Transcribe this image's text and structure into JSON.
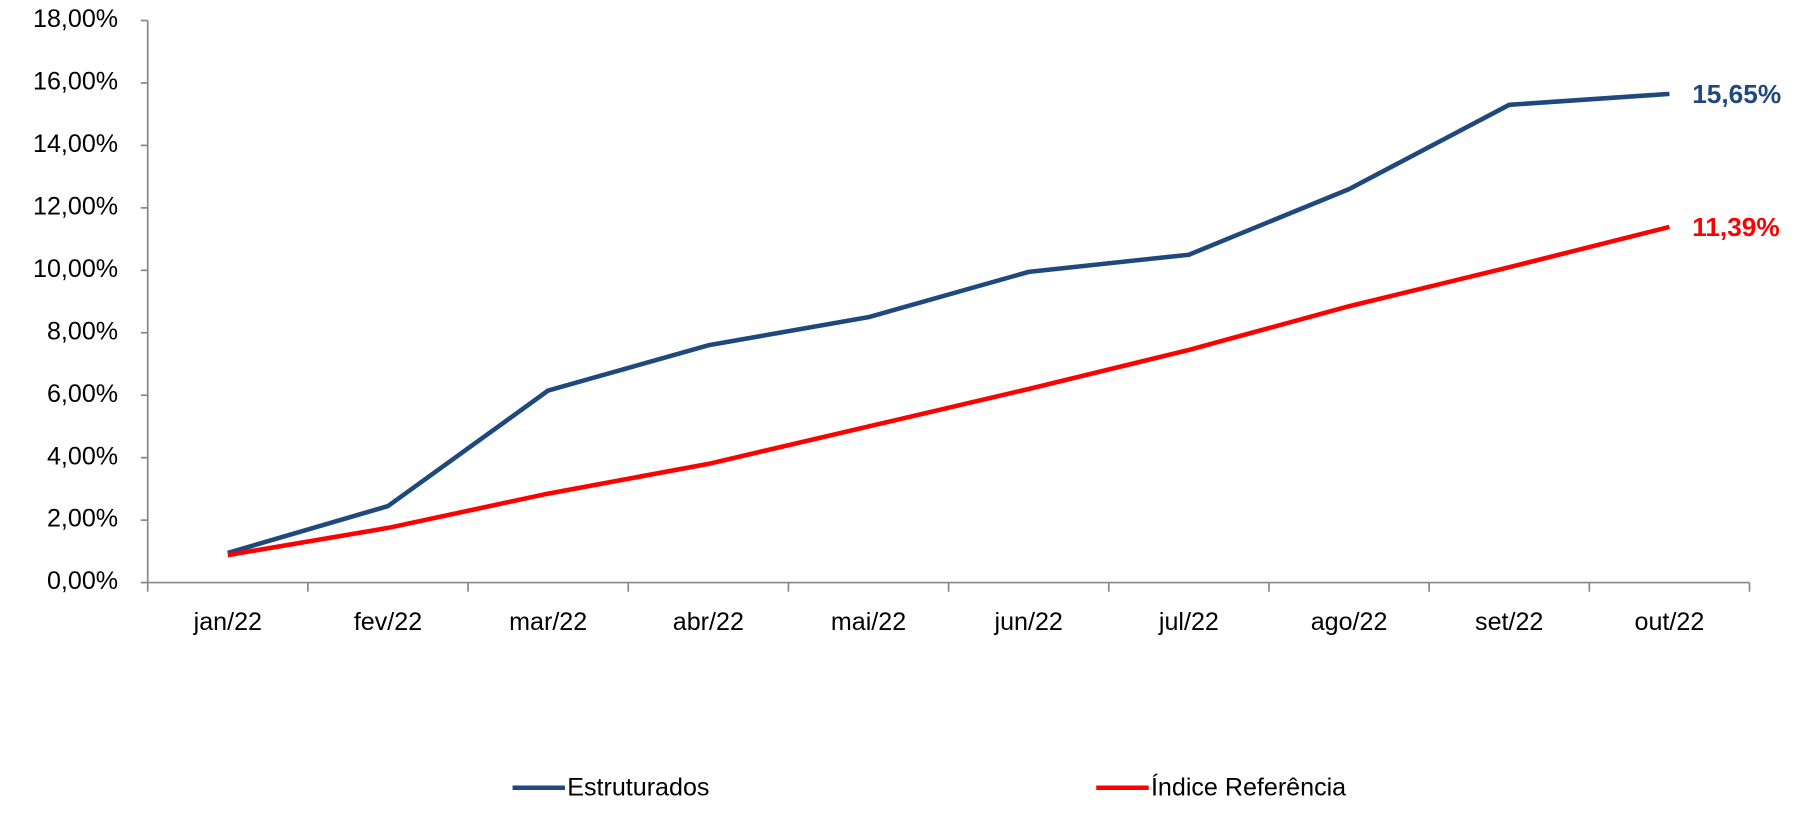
{
  "chart_data": {
    "type": "line",
    "categories": [
      "jan/22",
      "fev/22",
      "mar/22",
      "abr/22",
      "mai/22",
      "jun/22",
      "jul/22",
      "ago/22",
      "set/22",
      "out/22"
    ],
    "series": [
      {
        "name": "Estruturados",
        "color": "#1f497d",
        "values": [
          0.95,
          2.45,
          6.15,
          7.6,
          8.5,
          9.95,
          10.5,
          12.6,
          15.3,
          15.65
        ],
        "value_labels": [
          null,
          null,
          null,
          null,
          null,
          null,
          null,
          null,
          null,
          "15,65%"
        ]
      },
      {
        "name": "Índice Referência",
        "color": "#ff0000",
        "values": [
          0.88,
          1.75,
          2.85,
          3.8,
          5.0,
          6.2,
          7.45,
          8.85,
          10.1,
          11.39
        ],
        "value_labels": [
          null,
          null,
          null,
          null,
          null,
          null,
          null,
          null,
          null,
          "11,39%"
        ]
      }
    ],
    "ylim": [
      0,
      18
    ],
    "yticks": [
      {
        "value": 0,
        "label": "0,00%"
      },
      {
        "value": 2,
        "label": "2,00%"
      },
      {
        "value": 4,
        "label": "4,00%"
      },
      {
        "value": 6,
        "label": "6,00%"
      },
      {
        "value": 8,
        "label": "8,00%"
      },
      {
        "value": 10,
        "label": "10,00%"
      },
      {
        "value": 12,
        "label": "12,00%"
      },
      {
        "value": 14,
        "label": "14,00%"
      },
      {
        "value": 16,
        "label": "16,00%"
      },
      {
        "value": 18,
        "label": "18,00%"
      }
    ],
    "grid": false,
    "legend": "bottom"
  }
}
